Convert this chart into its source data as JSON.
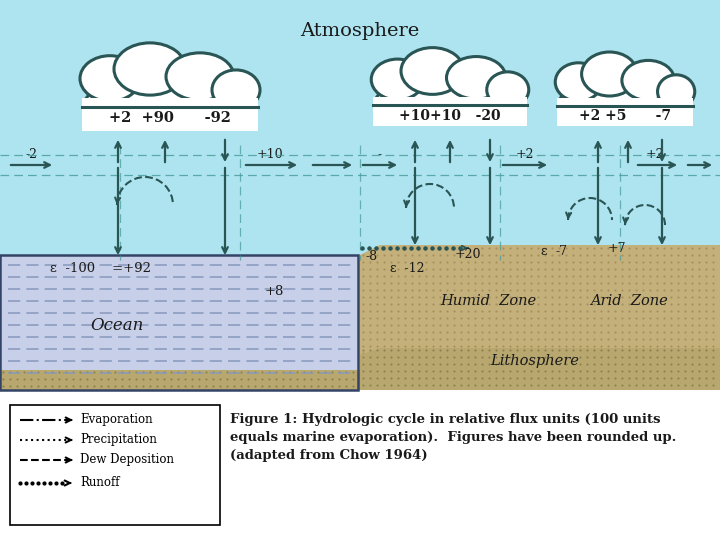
{
  "bg_sky": "#aee4ef",
  "bg_ocean": "#c8cfe8",
  "bg_land": "#c4b07a",
  "bg_litho_dots": "#a89060",
  "bg_white": "#ffffff",
  "title": "Atmosphere",
  "caption_line1": "Figure 1: Hydrologic cycle in relative flux units (100 units",
  "caption_line2": "equals marine evaporation).  Figures have been rounded up.",
  "caption_line3": "(adapted from Chow 1964)",
  "legend_items": [
    "Evaporation",
    "Precipitation",
    "Dew Deposition",
    "Runoff"
  ],
  "cloud1_text": "+2  +90     -92",
  "cloud2_text": "+10+10   -20",
  "cloud3_text": "+2 +5     -7",
  "tc": "#1a1a1a",
  "arrow_color": "#2a5555",
  "ocean_line_color": "#8899bb",
  "atm_grid_color": "#449999"
}
